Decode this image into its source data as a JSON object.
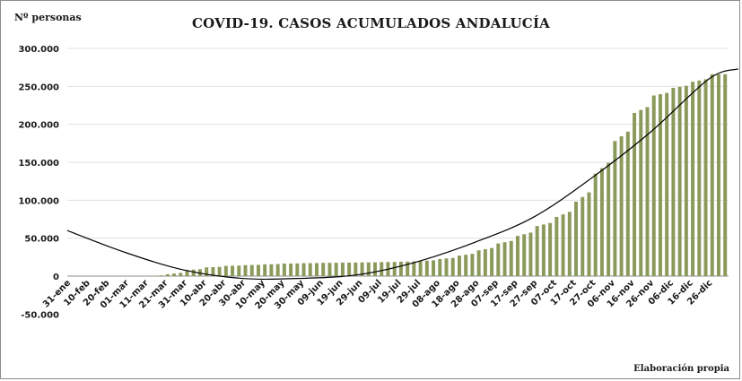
{
  "chart_data": {
    "type": "bar",
    "title": "COVID-19. CASOS ACUMULADOS ANDALUCÍA",
    "ylabel": "Nº personas",
    "source": "Elaboración propia",
    "ylim": [
      -50000,
      300000
    ],
    "y_ticks": [
      "-50.000",
      "0",
      "50.000",
      "100.000",
      "150.000",
      "200.000",
      "250.000",
      "300.000"
    ],
    "y_tick_values": [
      -50000,
      0,
      50000,
      100000,
      150000,
      200000,
      250000,
      300000
    ],
    "categories": [
      "31-ene",
      "10-feb",
      "20-feb",
      "01-mar",
      "11-mar",
      "21-mar",
      "31-mar",
      "10-abr",
      "20-abr",
      "30-abr",
      "10-may",
      "20-may",
      "30-may",
      "09-jun",
      "19-jun",
      "29-jun",
      "09-jul",
      "19-jul",
      "29-jul",
      "08-ago",
      "18-ago",
      "28-ago",
      "07-sep",
      "17-sep",
      "27-sep",
      "07-oct",
      "17-oct",
      "27-oct",
      "06-nov",
      "16-nov",
      "26-nov",
      "06-dic",
      "16-dic",
      "26-dic"
    ],
    "values": [
      0,
      0,
      0,
      10,
      200,
      2500,
      8000,
      11500,
      13500,
      14500,
      15500,
      16500,
      17000,
      17500,
      17800,
      18000,
      18500,
      19000,
      20000,
      22500,
      27000,
      34000,
      43000,
      53000,
      66000,
      78000,
      98000,
      135000,
      178000,
      215000,
      238000,
      248000,
      256000,
      266000
    ],
    "trend": {
      "type": "polynomial",
      "points": [
        [
          0,
          60000
        ],
        [
          3,
          31000
        ],
        [
          6,
          8000
        ],
        [
          9,
          -3000
        ],
        [
          12,
          -3000
        ],
        [
          15,
          2000
        ],
        [
          18,
          19000
        ],
        [
          21,
          45000
        ],
        [
          24,
          78000
        ],
        [
          27,
          130000
        ],
        [
          30,
          190000
        ],
        [
          33,
          260000
        ],
        [
          34.5,
          273000
        ]
      ]
    },
    "series_color": "#8a9a5b",
    "trend_color": "#000000",
    "grid": true,
    "legend": "none"
  }
}
